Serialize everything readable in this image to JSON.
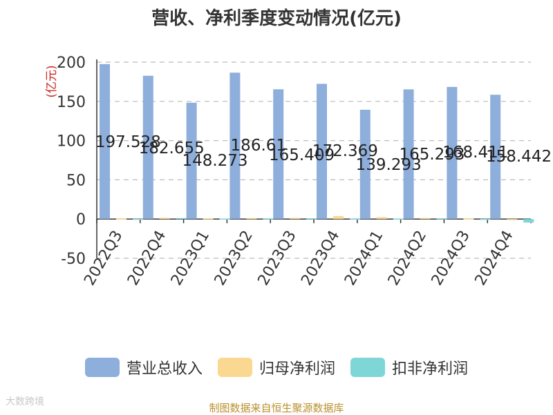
{
  "chart_data": {
    "type": "bar",
    "title": "营收、净利季度变动情况(亿元)",
    "ylabel": "(亿元)",
    "ylim": [
      -50,
      200
    ],
    "yticks": [
      -50,
      0,
      50,
      100,
      150,
      200
    ],
    "grid": true,
    "legend_position": "bottom",
    "categories": [
      "2022Q3",
      "2022Q4",
      "2023Q1",
      "2023Q2",
      "2023Q3",
      "2023Q4",
      "2024Q1",
      "2024Q2",
      "2024Q3",
      "2024Q4"
    ],
    "series": [
      {
        "name": "营业总收入",
        "color": "#8eaedb",
        "values": [
          197.528,
          182.655,
          148.273,
          186.61,
          165.409,
          172.369,
          139.293,
          165.293,
          168.411,
          158.442
        ],
        "labels": [
          "197.528",
          "182.655",
          "148.273",
          "186.61",
          "165.409",
          "172.369",
          "139.293",
          "165.293",
          "168.411",
          "158.442"
        ]
      },
      {
        "name": "归母净利润",
        "color": "#fbd892",
        "values": [
          0.5,
          1.6,
          0.9,
          1.2,
          1.4,
          3.8,
          2.4,
          1.3,
          0.5,
          -0.4
        ]
      },
      {
        "name": "扣非净利润",
        "color": "#7fd6d6",
        "values": [
          0.3,
          1.2,
          0.6,
          0.8,
          0.9,
          0.5,
          0.6,
          0.9,
          0.2,
          -4.5
        ]
      }
    ]
  },
  "watermark": "大数跨境",
  "source": "制图数据来自恒生聚源数据库"
}
